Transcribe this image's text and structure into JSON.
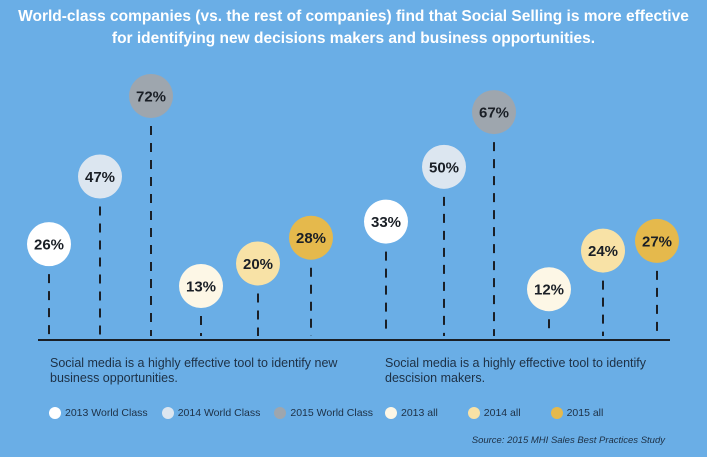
{
  "title_lines": [
    "World-class companies (vs. the rest of companies) find that Social Selling is more effective",
    "for identifying new decisions makers and business opportunities."
  ],
  "colors": {
    "background": "#6aaee6",
    "s2013_world_class": "#ffffff",
    "s2014_world_class": "#dce6f0",
    "s2015_world_class": "#9ea6ae",
    "s2013_all": "#fdf7e6",
    "s2014_all": "#f8e2a6",
    "s2015_all": "#e5b94c"
  },
  "captions": {
    "left": "Social media is a highly effective tool to identify new business opportunities.",
    "right": "Social media is a highly effective tool to identify descision makers."
  },
  "legend": {
    "left": [
      {
        "label": "2013 World Class",
        "color": "#ffffff"
      },
      {
        "label": "2014 World Class",
        "color": "#dce6f0"
      },
      {
        "label": "2015 World Class",
        "color": "#9ea6ae"
      }
    ],
    "right": [
      {
        "label": "2013 all",
        "color": "#fdf7e6"
      },
      {
        "label": "2014 all",
        "color": "#f8e2a6"
      },
      {
        "label": "2015 all",
        "color": "#e5b94c"
      }
    ]
  },
  "source": "Source: 2015 MHI Sales Best Practices Study",
  "chart_data": [
    {
      "type": "scatter",
      "caption": "Social media is a highly effective tool to identify new business opportunities.",
      "categories": [
        "2013",
        "2014",
        "2015"
      ],
      "series": [
        {
          "name": "2013 World Class",
          "values": [
            26
          ],
          "color": "#ffffff"
        },
        {
          "name": "2014 World Class",
          "values": [
            47
          ],
          "color": "#dce6f0"
        },
        {
          "name": "2015 World Class",
          "values": [
            72
          ],
          "color": "#9ea6ae"
        },
        {
          "name": "2013 all",
          "values": [
            13
          ],
          "color": "#fdf7e6"
        },
        {
          "name": "2014 all",
          "values": [
            20
          ],
          "color": "#f8e2a6"
        },
        {
          "name": "2015 all",
          "values": [
            28
          ],
          "color": "#e5b94c"
        }
      ],
      "labels": [
        "26%",
        "47%",
        "72%",
        "13%",
        "20%",
        "28%"
      ]
    },
    {
      "type": "scatter",
      "caption": "Social media is a highly effective tool to identify descision makers.",
      "categories": [
        "2013",
        "2014",
        "2015"
      ],
      "series": [
        {
          "name": "2013 World Class",
          "values": [
            33
          ],
          "color": "#ffffff"
        },
        {
          "name": "2014 World Class",
          "values": [
            50
          ],
          "color": "#dce6f0"
        },
        {
          "name": "2015 World Class",
          "values": [
            67
          ],
          "color": "#9ea6ae"
        },
        {
          "name": "2013 all",
          "values": [
            12
          ],
          "color": "#fdf7e6"
        },
        {
          "name": "2014 all",
          "values": [
            24
          ],
          "color": "#f8e2a6"
        },
        {
          "name": "2015 all",
          "values": [
            27
          ],
          "color": "#e5b94c"
        }
      ],
      "labels": [
        "33%",
        "50%",
        "67%",
        "12%",
        "24%",
        "27%"
      ]
    }
  ]
}
